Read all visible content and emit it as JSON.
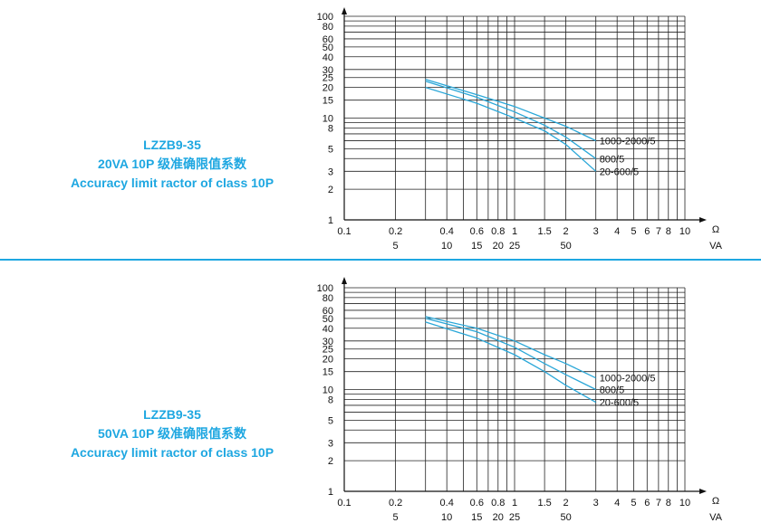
{
  "colors": {
    "accent": "#1ea7e1",
    "grid": "#222222",
    "curve": "#2aa7d8"
  },
  "x_ticks": [
    "0.1",
    "0.2",
    "0.4",
    "0.6",
    "0.8",
    "1",
    "1.5",
    "2",
    "3",
    "4",
    "5",
    "6",
    "7",
    "8",
    "10"
  ],
  "x_ticks_va": [
    "5",
    "10",
    "15",
    "20",
    "25",
    "50"
  ],
  "y_ticks": [
    "1",
    "2",
    "3",
    "5",
    "8",
    "10",
    "15",
    "20",
    "25",
    "30",
    "40",
    "50",
    "60",
    "80",
    "100"
  ],
  "x_unit": "Ω",
  "x_unit2": "VA",
  "panels": [
    {
      "title": {
        "line1": "LZZB9-35",
        "line2": "20VA 10P 级准确限值系数",
        "line3": "Accuracy limit ractor of class 10P"
      }
    },
    {
      "title": {
        "line1": "LZZB9-35",
        "line2": "50VA 10P 级准确限值系数",
        "line3": "Accuracy limit ractor of class 10P"
      }
    }
  ],
  "chart_data": [
    {
      "type": "line",
      "x_scale": "log",
      "y_scale": "log",
      "xlim": [
        0.1,
        10
      ],
      "ylim": [
        1,
        100
      ],
      "x_tick_labels": [
        "0.1",
        "0.2",
        "0.4",
        "0.6",
        "0.8",
        "1",
        "1.5",
        "2",
        "3",
        "4",
        "5",
        "6",
        "7",
        "8",
        "10"
      ],
      "x2_tick_labels": [
        "5",
        "10",
        "15",
        "20",
        "25",
        "50"
      ],
      "y_tick_labels": [
        "1",
        "2",
        "3",
        "5",
        "8",
        "10",
        "15",
        "20",
        "25",
        "30",
        "40",
        "50",
        "60",
        "80",
        "100"
      ],
      "xlabel": "Ω",
      "x2label": "VA",
      "series": [
        {
          "name": "1000-2000/5",
          "x": [
            0.3,
            0.6,
            1.0,
            1.5,
            2.0,
            3.0
          ],
          "y": [
            24,
            17,
            13,
            10,
            8.3,
            6
          ]
        },
        {
          "name": "800/5",
          "x": [
            0.3,
            0.6,
            1.0,
            1.5,
            2.0,
            3.0
          ],
          "y": [
            23,
            16,
            11.5,
            8.5,
            6.5,
            4
          ]
        },
        {
          "name": "20-600/5",
          "x": [
            0.3,
            0.6,
            1.0,
            1.5,
            2.0,
            3.0
          ],
          "y": [
            20,
            14,
            10,
            7.5,
            5.5,
            3
          ]
        }
      ]
    },
    {
      "type": "line",
      "x_scale": "log",
      "y_scale": "log",
      "xlim": [
        0.1,
        10
      ],
      "ylim": [
        1,
        100
      ],
      "x_tick_labels": [
        "0.1",
        "0.2",
        "0.4",
        "0.6",
        "0.8",
        "1",
        "1.5",
        "2",
        "3",
        "4",
        "5",
        "6",
        "7",
        "8",
        "10"
      ],
      "x2_tick_labels": [
        "5",
        "10",
        "15",
        "20",
        "25",
        "50"
      ],
      "y_tick_labels": [
        "1",
        "2",
        "3",
        "5",
        "8",
        "10",
        "15",
        "20",
        "25",
        "30",
        "40",
        "50",
        "60",
        "80",
        "100"
      ],
      "xlabel": "Ω",
      "x2label": "VA",
      "series": [
        {
          "name": "1000-2000/5",
          "x": [
            0.3,
            0.6,
            1.0,
            1.5,
            2.0,
            3.0
          ],
          "y": [
            52,
            40,
            30,
            22,
            18,
            13
          ]
        },
        {
          "name": "800/5",
          "x": [
            0.3,
            0.6,
            1.0,
            1.5,
            2.0,
            3.0
          ],
          "y": [
            50,
            37,
            26,
            18,
            14,
            10
          ]
        },
        {
          "name": "20-600/5",
          "x": [
            0.3,
            0.6,
            1.0,
            1.5,
            2.0,
            3.0
          ],
          "y": [
            46,
            32,
            22,
            15,
            11,
            7.5
          ]
        }
      ]
    }
  ]
}
